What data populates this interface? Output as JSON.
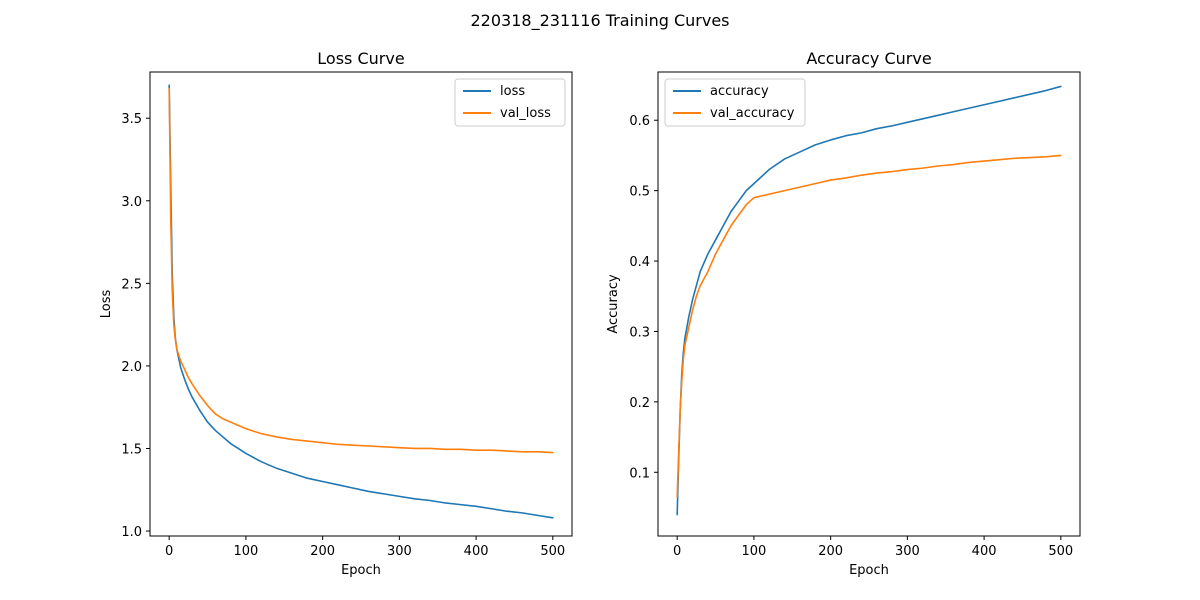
{
  "figure": {
    "suptitle": "220318_231116 Training Curves"
  },
  "colors": {
    "train": "#1f77b4",
    "val": "#ff7f0e"
  },
  "chart_data": [
    {
      "type": "line",
      "title": "Loss Curve",
      "xlabel": "Epoch",
      "ylabel": "Loss",
      "xlim": [
        -25,
        525
      ],
      "ylim": [
        0.97,
        3.78
      ],
      "xticks": [
        0,
        100,
        200,
        300,
        400,
        500
      ],
      "yticks": [
        1.0,
        1.5,
        2.0,
        2.5,
        3.0,
        3.5
      ],
      "ytick_labels": [
        "1.0",
        "1.5",
        "2.0",
        "2.5",
        "3.0",
        "3.5"
      ],
      "grid": false,
      "legend_position": "upper right",
      "x": [
        0,
        2,
        4,
        6,
        8,
        10,
        15,
        20,
        25,
        30,
        40,
        50,
        60,
        70,
        80,
        90,
        100,
        120,
        140,
        160,
        180,
        200,
        220,
        240,
        260,
        280,
        300,
        320,
        340,
        360,
        380,
        400,
        420,
        440,
        460,
        480,
        500
      ],
      "series": [
        {
          "name": "loss",
          "values": [
            3.7,
            3.1,
            2.55,
            2.3,
            2.17,
            2.1,
            1.99,
            1.92,
            1.86,
            1.81,
            1.73,
            1.66,
            1.61,
            1.57,
            1.53,
            1.5,
            1.47,
            1.42,
            1.38,
            1.35,
            1.32,
            1.3,
            1.28,
            1.26,
            1.24,
            1.225,
            1.21,
            1.195,
            1.185,
            1.17,
            1.16,
            1.15,
            1.135,
            1.12,
            1.11,
            1.095,
            1.08
          ]
        },
        {
          "name": "val_loss",
          "values": [
            3.68,
            2.9,
            2.45,
            2.25,
            2.16,
            2.1,
            2.03,
            1.98,
            1.93,
            1.89,
            1.82,
            1.76,
            1.71,
            1.68,
            1.66,
            1.64,
            1.62,
            1.59,
            1.57,
            1.555,
            1.545,
            1.535,
            1.525,
            1.52,
            1.515,
            1.51,
            1.505,
            1.5,
            1.5,
            1.495,
            1.495,
            1.49,
            1.49,
            1.485,
            1.48,
            1.48,
            1.475
          ]
        }
      ]
    },
    {
      "type": "line",
      "title": "Accuracy Curve",
      "xlabel": "Epoch",
      "ylabel": "Accuracy",
      "xlim": [
        -25,
        525
      ],
      "ylim": [
        0.0095,
        0.6685
      ],
      "xticks": [
        0,
        100,
        200,
        300,
        400,
        500
      ],
      "yticks": [
        0.1,
        0.2,
        0.3,
        0.4,
        0.5,
        0.6
      ],
      "ytick_labels": [
        "0.1",
        "0.2",
        "0.3",
        "0.4",
        "0.5",
        "0.6"
      ],
      "grid": false,
      "legend_position": "upper left",
      "x": [
        0,
        2,
        4,
        6,
        8,
        10,
        15,
        20,
        25,
        30,
        40,
        50,
        60,
        70,
        80,
        90,
        100,
        120,
        140,
        160,
        180,
        200,
        220,
        240,
        260,
        280,
        300,
        320,
        340,
        360,
        380,
        400,
        420,
        440,
        460,
        480,
        500
      ],
      "series": [
        {
          "name": "accuracy",
          "values": [
            0.04,
            0.12,
            0.19,
            0.24,
            0.27,
            0.29,
            0.32,
            0.345,
            0.365,
            0.385,
            0.41,
            0.43,
            0.45,
            0.47,
            0.485,
            0.5,
            0.51,
            0.53,
            0.545,
            0.555,
            0.565,
            0.572,
            0.578,
            0.582,
            0.588,
            0.592,
            0.597,
            0.602,
            0.607,
            0.612,
            0.617,
            0.622,
            0.627,
            0.632,
            0.637,
            0.642,
            0.648
          ]
        },
        {
          "name": "val_accuracy",
          "values": [
            0.065,
            0.13,
            0.19,
            0.23,
            0.26,
            0.28,
            0.305,
            0.33,
            0.35,
            0.365,
            0.385,
            0.41,
            0.43,
            0.45,
            0.465,
            0.48,
            0.49,
            0.495,
            0.5,
            0.505,
            0.51,
            0.515,
            0.518,
            0.522,
            0.525,
            0.527,
            0.53,
            0.532,
            0.535,
            0.537,
            0.54,
            0.542,
            0.544,
            0.546,
            0.547,
            0.548,
            0.55
          ]
        }
      ]
    }
  ]
}
